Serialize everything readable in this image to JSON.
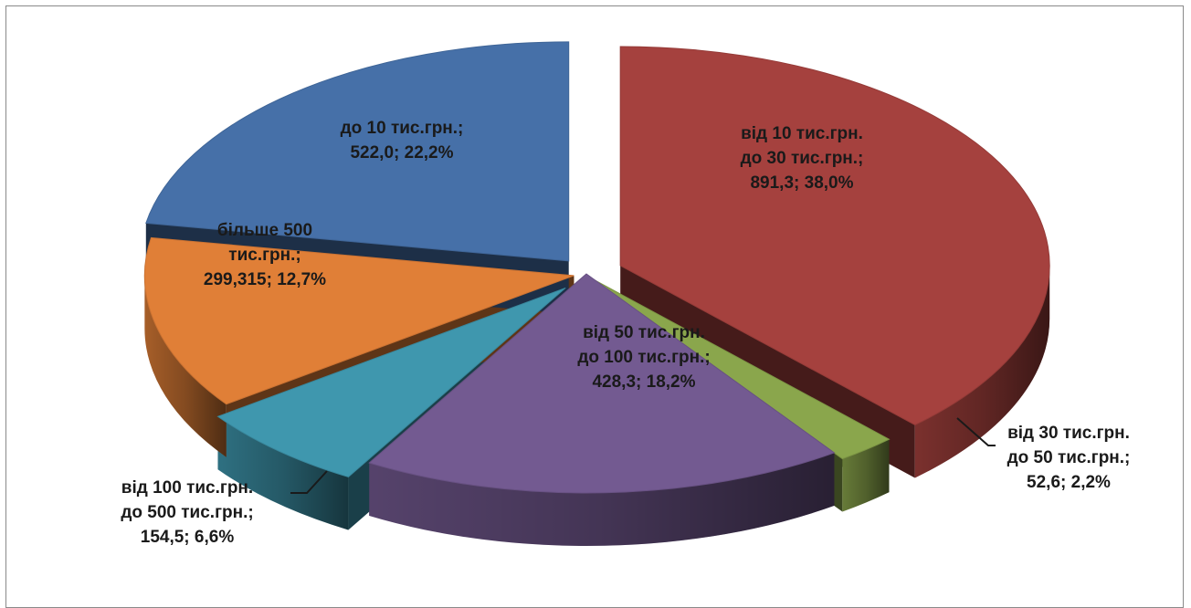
{
  "chart_data": {
    "type": "pie",
    "title": "",
    "slices": [
      {
        "label_lines": [
          "від 10 тис.грн.",
          "до 30 тис.грн.;",
          "891,3; 38,0%"
        ],
        "value": 891.3,
        "percent": 38.0,
        "color": "#a5413e"
      },
      {
        "label_lines": [
          "від 30 тис.грн.",
          "до 50 тис.грн.;",
          "52,6; 2,2%"
        ],
        "value": 52.6,
        "percent": 2.2,
        "color": "#8aa64c"
      },
      {
        "label_lines": [
          "від 50 тис.грн.",
          "до 100 тис.грн.;",
          "428,3; 18,2%"
        ],
        "value": 428.3,
        "percent": 18.2,
        "color": "#735a91"
      },
      {
        "label_lines": [
          "від 100 тис.грн.",
          "до 500 тис.грн.;",
          "154,5; 6,6%"
        ],
        "value": 154.5,
        "percent": 6.6,
        "color": "#3f97ae"
      },
      {
        "label_lines": [
          "більше 500",
          "тис.грн.;",
          "299,315; 12,7%"
        ],
        "value": 299.315,
        "percent": 12.7,
        "color": "#e07f37"
      },
      {
        "label_lines": [
          "до 10 тис.грн.;",
          "522,0; 22,2%"
        ],
        "value": 522.0,
        "percent": 22.2,
        "color": "#4670a8"
      }
    ]
  }
}
